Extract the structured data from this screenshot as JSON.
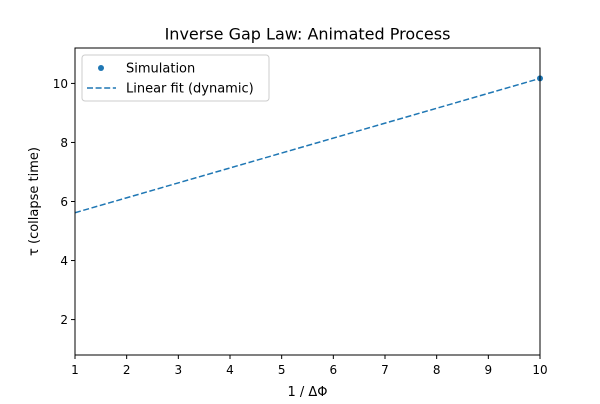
{
  "chart_data": {
    "type": "scatter",
    "title": "Inverse Gap Law: Animated Process",
    "xlabel": "1 / ΔΦ",
    "ylabel": "τ (collapse time)",
    "xlim": [
      1,
      10
    ],
    "ylim": [
      0.8,
      11.2
    ],
    "x_ticks": [
      1,
      2,
      3,
      4,
      5,
      6,
      7,
      8,
      9,
      10
    ],
    "y_ticks": [
      2,
      4,
      6,
      8,
      10
    ],
    "grid": false,
    "legend_position": "top-left",
    "series": [
      {
        "name": "Simulation",
        "kind": "scatter",
        "color": "#1f77b4",
        "x": [
          10
        ],
        "y": [
          10.17
        ]
      },
      {
        "name": "Linear fit (dynamic)",
        "kind": "line",
        "style": "dashed",
        "color": "#1f77b4",
        "x": [
          1,
          10
        ],
        "y": [
          5.62,
          10.17
        ]
      }
    ]
  }
}
